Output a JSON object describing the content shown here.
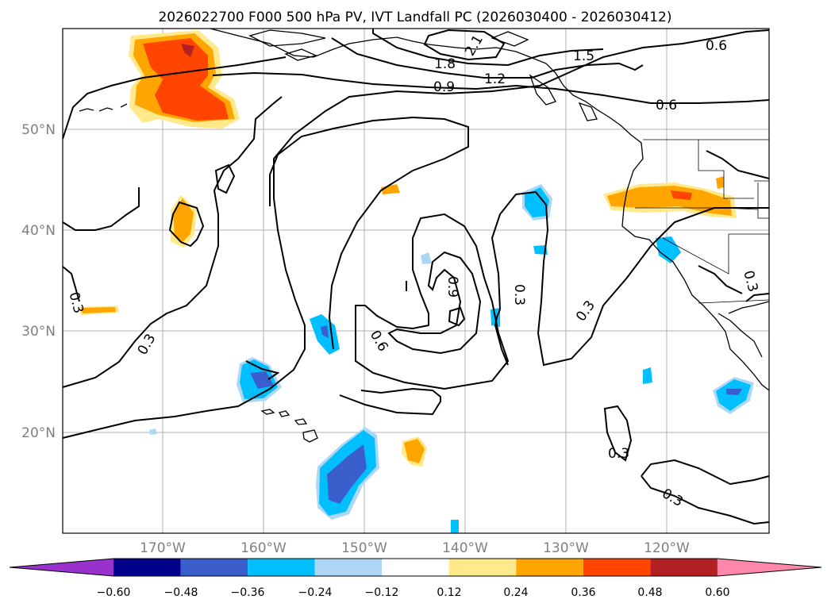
{
  "title": "2026022700 F000 500 hPa PV, IVT Landfall PC (2026030400 - 2026030412)",
  "lat_labels": [
    "50°N",
    "40°N",
    "30°N",
    "20°N"
  ],
  "lon_labels": [
    "170°W",
    "160°W",
    "150°W",
    "140°W",
    "130°W",
    "120°W"
  ],
  "colorbar": {
    "ticks": [
      "−0.60",
      "−0.48",
      "−0.36",
      "−0.24",
      "−0.12",
      "0.12",
      "0.24",
      "0.36",
      "0.48",
      "0.60"
    ],
    "colors": [
      "#9932cc",
      "#00008b",
      "#3a5fcd",
      "#00bfff",
      "#add8f5",
      "#ffffff",
      "#ffe98a",
      "#ffa500",
      "#ff4500",
      "#b22222",
      "#ff88aa"
    ]
  },
  "contour_labels": {
    "c18": "1.8",
    "c21": "2.1",
    "c15": "1.5",
    "c12": "1.2",
    "c09": "0.9",
    "c06a": "0.6",
    "c06b": "0.6",
    "c06c": "0.6",
    "c09b": "0.9",
    "c03a": "0.3",
    "c03b": "0.3",
    "c03c": "0.3",
    "c03d": "0.3",
    "c03e": "0.3",
    "c03f": "0.3",
    "c03g": "0.3"
  }
}
